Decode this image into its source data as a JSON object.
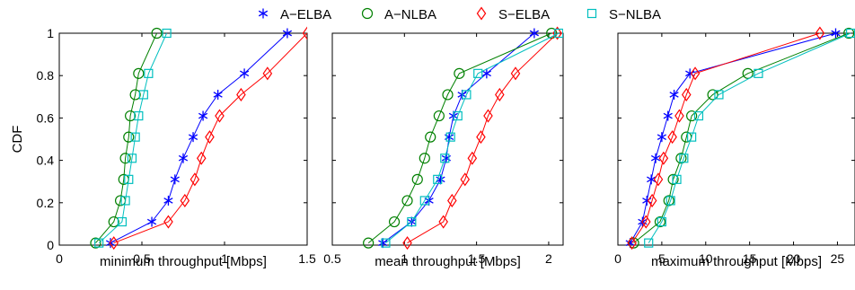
{
  "legend": {
    "entries": [
      {
        "name": "A−ELBA",
        "color": "#0000ff",
        "marker": "star"
      },
      {
        "name": "A−NLBA",
        "color": "#008000",
        "marker": "circle"
      },
      {
        "name": "S−ELBA",
        "color": "#ff0000",
        "marker": "diamond"
      },
      {
        "name": "S−NLBA",
        "color": "#00bfbf",
        "marker": "square"
      }
    ],
    "placement": "top-center"
  },
  "chart_data": [
    {
      "type": "line",
      "xlabel": "minimum throughput [Mbps]",
      "ylabel": "CDF",
      "xlim": [
        0,
        1.5
      ],
      "ylim": [
        0,
        1
      ],
      "xticks": [
        "0",
        "0.5",
        "1",
        "1.5"
      ],
      "yticks": [
        "0",
        "0.2",
        "0.4",
        "0.6",
        "0.8",
        "1"
      ],
      "series": [
        {
          "name": "A−ELBA",
          "x": [
            0.31,
            0.56,
            0.66,
            0.7,
            0.75,
            0.81,
            0.87,
            0.96,
            1.12,
            1.38
          ],
          "y": [
            0.01,
            0.11,
            0.21,
            0.31,
            0.41,
            0.51,
            0.61,
            0.71,
            0.81,
            1.0
          ]
        },
        {
          "name": "A−NLBA",
          "x": [
            0.22,
            0.33,
            0.37,
            0.39,
            0.4,
            0.42,
            0.43,
            0.46,
            0.48,
            0.59
          ],
          "y": [
            0.01,
            0.11,
            0.21,
            0.31,
            0.41,
            0.51,
            0.61,
            0.71,
            0.81,
            1.0
          ]
        },
        {
          "name": "S−ELBA",
          "x": [
            0.33,
            0.66,
            0.76,
            0.82,
            0.86,
            0.91,
            0.97,
            1.1,
            1.26,
            1.5
          ],
          "y": [
            0.01,
            0.11,
            0.21,
            0.31,
            0.41,
            0.51,
            0.61,
            0.71,
            0.81,
            1.0
          ]
        },
        {
          "name": "S−NLBA",
          "x": [
            0.24,
            0.38,
            0.4,
            0.42,
            0.44,
            0.46,
            0.48,
            0.51,
            0.54,
            0.65
          ],
          "y": [
            0.01,
            0.11,
            0.21,
            0.31,
            0.41,
            0.51,
            0.61,
            0.71,
            0.81,
            1.0
          ]
        }
      ]
    },
    {
      "type": "line",
      "xlabel": "mean throughput [Mbps]",
      "ylabel": "",
      "xlim": [
        0.5,
        2.1
      ],
      "ylim": [
        0,
        1
      ],
      "xticks": [
        "0.5",
        "1",
        "1.5",
        "2"
      ],
      "yticks": [],
      "series": [
        {
          "name": "A−ELBA",
          "x": [
            0.85,
            1.05,
            1.17,
            1.25,
            1.29,
            1.31,
            1.34,
            1.4,
            1.57,
            1.9
          ],
          "y": [
            0.01,
            0.11,
            0.21,
            0.31,
            0.41,
            0.51,
            0.61,
            0.71,
            0.81,
            1.0
          ]
        },
        {
          "name": "A−NLBA",
          "x": [
            0.75,
            0.93,
            1.02,
            1.09,
            1.14,
            1.18,
            1.24,
            1.3,
            1.38,
            2.02
          ],
          "y": [
            0.01,
            0.11,
            0.21,
            0.31,
            0.41,
            0.51,
            0.61,
            0.71,
            0.81,
            1.0
          ]
        },
        {
          "name": "S−ELBA",
          "x": [
            1.02,
            1.27,
            1.33,
            1.42,
            1.47,
            1.53,
            1.58,
            1.66,
            1.77,
            2.06
          ],
          "y": [
            0.01,
            0.11,
            0.21,
            0.31,
            0.41,
            0.51,
            0.61,
            0.71,
            0.81,
            1.0
          ]
        },
        {
          "name": "S−NLBA",
          "x": [
            0.87,
            1.05,
            1.14,
            1.23,
            1.28,
            1.32,
            1.37,
            1.43,
            1.51,
            2.07
          ],
          "y": [
            0.01,
            0.11,
            0.21,
            0.31,
            0.41,
            0.51,
            0.61,
            0.71,
            0.81,
            1.0
          ]
        }
      ]
    },
    {
      "type": "line",
      "xlabel": "maximum throughput [Mbps]",
      "ylabel": "",
      "xlim": [
        0,
        27
      ],
      "ylim": [
        0,
        1
      ],
      "xticks": [
        "0",
        "5",
        "10",
        "15",
        "20",
        "25"
      ],
      "yticks": [],
      "series": [
        {
          "name": "A−ELBA",
          "x": [
            1.4,
            2.8,
            3.3,
            3.8,
            4.3,
            5.0,
            5.7,
            6.4,
            8.2,
            24.8
          ],
          "y": [
            0.01,
            0.11,
            0.21,
            0.31,
            0.41,
            0.51,
            0.61,
            0.71,
            0.81,
            1.0
          ]
        },
        {
          "name": "A−NLBA",
          "x": [
            1.8,
            4.8,
            5.8,
            6.3,
            7.2,
            7.8,
            8.4,
            10.8,
            14.8,
            26.3
          ],
          "y": [
            0.01,
            0.11,
            0.21,
            0.31,
            0.41,
            0.51,
            0.61,
            0.71,
            0.81,
            1.0
          ]
        },
        {
          "name": "S−ELBA",
          "x": [
            1.6,
            3.2,
            3.9,
            4.6,
            5.2,
            6.2,
            7.0,
            7.8,
            8.8,
            23.0
          ],
          "y": [
            0.01,
            0.11,
            0.21,
            0.31,
            0.41,
            0.51,
            0.61,
            0.71,
            0.81,
            1.0
          ]
        },
        {
          "name": "S−NLBA",
          "x": [
            3.5,
            5.0,
            6.0,
            6.7,
            7.5,
            8.4,
            9.2,
            11.5,
            16.0,
            26.5
          ],
          "y": [
            0.01,
            0.11,
            0.21,
            0.31,
            0.41,
            0.51,
            0.61,
            0.71,
            0.81,
            1.0
          ]
        }
      ]
    }
  ]
}
